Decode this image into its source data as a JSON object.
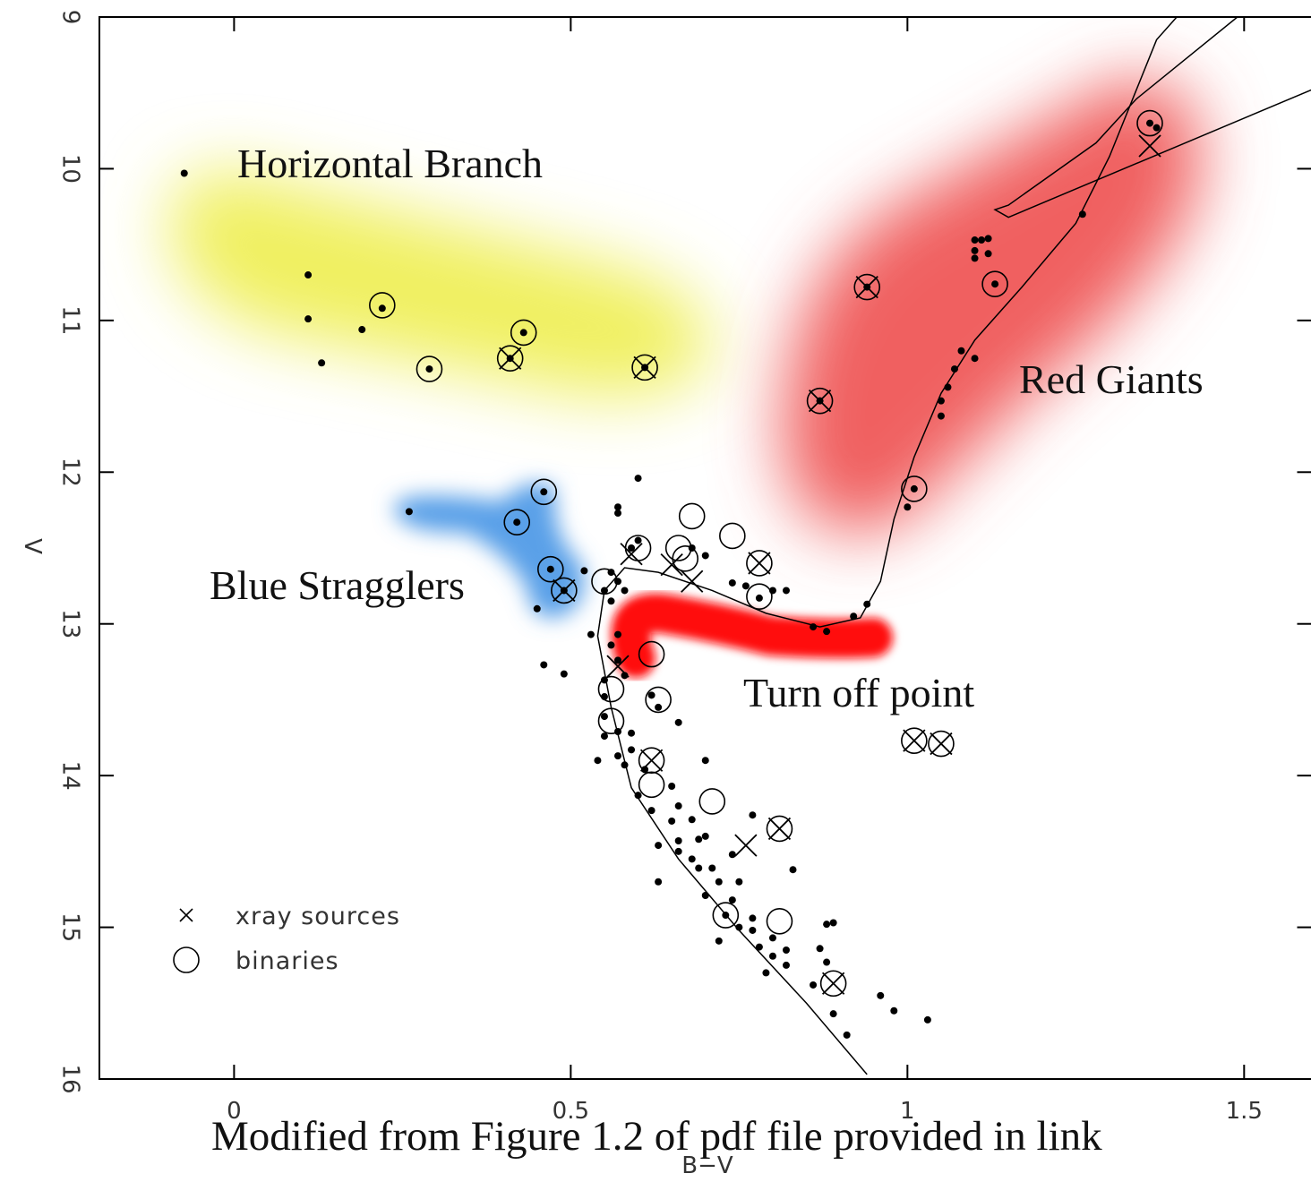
{
  "chart_data": {
    "type": "scatter",
    "xlabel": "B−V",
    "ylabel": "V",
    "xlim": [
      -0.2,
      1.6
    ],
    "ylim": [
      16,
      9
    ],
    "y_inverted": true,
    "xticks": [
      0,
      0.5,
      1,
      1.5
    ],
    "yticks": [
      9,
      10,
      11,
      12,
      13,
      14,
      15,
      16
    ],
    "legend": "lower left",
    "annotations": [
      "Horizontal Branch",
      "Red Giants",
      "Blue Stragglers",
      "Turn off point",
      "Modified from Figure 1.2 of pdf file provided in link"
    ],
    "series": [
      {
        "name": "xray sources",
        "marker": "x",
        "color": "#000000",
        "x": [
          0.41,
          0.61,
          0.49,
          0.94,
          0.87,
          1.36,
          0.78,
          0.68,
          0.65,
          0.59,
          0.57,
          0.62,
          0.76,
          0.81,
          1.01,
          1.05,
          0.89
        ],
        "values": [
          11.25,
          11.31,
          12.78,
          10.78,
          11.53,
          9.85,
          12.6,
          12.72,
          12.61,
          12.54,
          13.28,
          13.9,
          14.46,
          14.35,
          13.77,
          13.79,
          15.37
        ]
      },
      {
        "name": "binaries",
        "marker": "circle",
        "color": "#000000",
        "x": [
          0.22,
          0.29,
          0.43,
          0.46,
          0.42,
          0.47,
          1.36,
          1.13,
          1.01,
          0.68,
          0.74,
          0.6,
          0.66,
          0.67,
          0.78,
          0.55,
          0.62,
          0.63,
          0.56,
          0.56,
          0.62,
          0.71,
          0.73,
          0.81,
          0.41,
          0.61,
          0.49,
          0.94,
          0.87,
          0.78,
          0.81,
          1.01,
          1.05,
          0.89,
          0.62
        ],
        "values": [
          10.9,
          11.32,
          11.08,
          12.13,
          12.33,
          12.64,
          9.7,
          10.76,
          12.11,
          12.29,
          12.42,
          12.5,
          12.5,
          12.57,
          12.82,
          12.72,
          13.2,
          13.5,
          13.43,
          13.64,
          14.06,
          14.17,
          14.92,
          14.96,
          11.25,
          11.31,
          12.78,
          10.78,
          11.53,
          12.6,
          14.35,
          13.77,
          13.79,
          15.37,
          13.9
        ]
      },
      {
        "marker": "dot",
        "color": "#000000",
        "x": [
          -0.074,
          0.11,
          0.11,
          0.13,
          0.19,
          0.22,
          0.43,
          0.29,
          0.41,
          0.61,
          0.26,
          0.46,
          0.42,
          0.47,
          0.49,
          0.52,
          0.45,
          0.94,
          0.87,
          1.01,
          1.13,
          1.36,
          1.37,
          1.26,
          1.1,
          1.11,
          1.12,
          1.1,
          1.12,
          1.1,
          1.08,
          1.1,
          1.07,
          1.06,
          1.05,
          1.05,
          1.0,
          0.94,
          0.92,
          0.88,
          0.86,
          0.6,
          0.57,
          0.57,
          0.59,
          0.6,
          0.56,
          0.57,
          0.58,
          0.55,
          0.56,
          0.74,
          0.76,
          0.8,
          0.82,
          0.78,
          0.7,
          0.68,
          0.57,
          0.56,
          0.57,
          0.53,
          0.46,
          0.49,
          0.55,
          0.58,
          0.55,
          0.55,
          0.57,
          0.55,
          0.59,
          0.59,
          0.57,
          0.54,
          0.61,
          0.58,
          0.66,
          0.62,
          0.63,
          0.7,
          0.65,
          0.6,
          0.62,
          0.66,
          0.65,
          0.68,
          0.66,
          0.69,
          0.7,
          0.66,
          0.68,
          0.69,
          0.71,
          0.74,
          0.77,
          0.83,
          0.63,
          0.63,
          0.7,
          0.72,
          0.75,
          0.74,
          0.73,
          0.77,
          0.75,
          0.77,
          0.72,
          0.78,
          0.8,
          0.82,
          0.8,
          0.82,
          0.79,
          0.88,
          0.89,
          0.87,
          0.88,
          0.86,
          0.89,
          0.91,
          0.96,
          0.98,
          1.03
        ],
        "values": [
          10.03,
          10.7,
          10.99,
          11.28,
          11.06,
          10.92,
          11.08,
          11.32,
          11.25,
          11.31,
          12.26,
          12.13,
          12.33,
          12.64,
          12.78,
          12.65,
          12.9,
          10.78,
          11.53,
          12.11,
          10.76,
          9.7,
          9.73,
          10.3,
          10.47,
          10.47,
          10.46,
          10.54,
          10.56,
          10.59,
          11.2,
          11.25,
          11.32,
          11.44,
          11.53,
          11.63,
          12.23,
          12.87,
          12.95,
          13.05,
          13.02,
          12.04,
          12.23,
          12.27,
          12.5,
          12.45,
          12.66,
          12.72,
          12.78,
          12.78,
          12.85,
          12.73,
          12.75,
          12.78,
          12.78,
          12.83,
          12.55,
          12.5,
          13.07,
          13.14,
          13.24,
          13.07,
          13.27,
          13.33,
          13.37,
          13.34,
          13.48,
          13.61,
          13.71,
          13.74,
          13.72,
          13.83,
          13.87,
          13.9,
          13.96,
          13.93,
          13.65,
          13.47,
          13.55,
          13.9,
          14.07,
          14.13,
          14.23,
          14.2,
          14.3,
          14.29,
          14.43,
          14.42,
          14.4,
          14.5,
          14.55,
          14.61,
          14.61,
          14.52,
          14.26,
          14.62,
          14.7,
          14.46,
          14.79,
          14.7,
          14.7,
          14.82,
          14.92,
          14.94,
          15.0,
          15.02,
          15.09,
          15.13,
          15.07,
          15.15,
          15.19,
          15.25,
          15.3,
          14.98,
          14.97,
          15.14,
          15.23,
          15.38,
          15.57,
          15.71,
          15.45,
          15.55,
          15.61
        ]
      },
      {
        "marker": "line",
        "color": "#000000",
        "x": [
          0.94,
          0.85,
          0.75,
          0.66,
          0.59,
          0.56,
          0.54,
          0.55,
          0.58,
          0.63,
          0.71,
          0.79,
          0.87,
          0.93,
          0.96,
          0.98,
          1.01,
          1.05,
          1.1,
          1.17,
          1.25,
          1.3,
          1.34,
          1.37,
          1.4
        ],
        "values": [
          15.97,
          15.5,
          15.02,
          14.55,
          14.08,
          13.55,
          13.08,
          12.78,
          12.63,
          12.66,
          12.78,
          12.93,
          13.02,
          12.96,
          12.72,
          12.31,
          11.9,
          11.48,
          11.13,
          10.78,
          10.36,
          9.92,
          9.48,
          9.15,
          9.0
        ]
      },
      {
        "marker": "line",
        "color": "#000000",
        "x": [
          1.49,
          1.34,
          1.28,
          1.15,
          1.13,
          1.15,
          1.6
        ],
        "values": [
          9.0,
          9.54,
          9.83,
          10.24,
          10.27,
          10.32,
          9.48
        ]
      }
    ]
  }
}
